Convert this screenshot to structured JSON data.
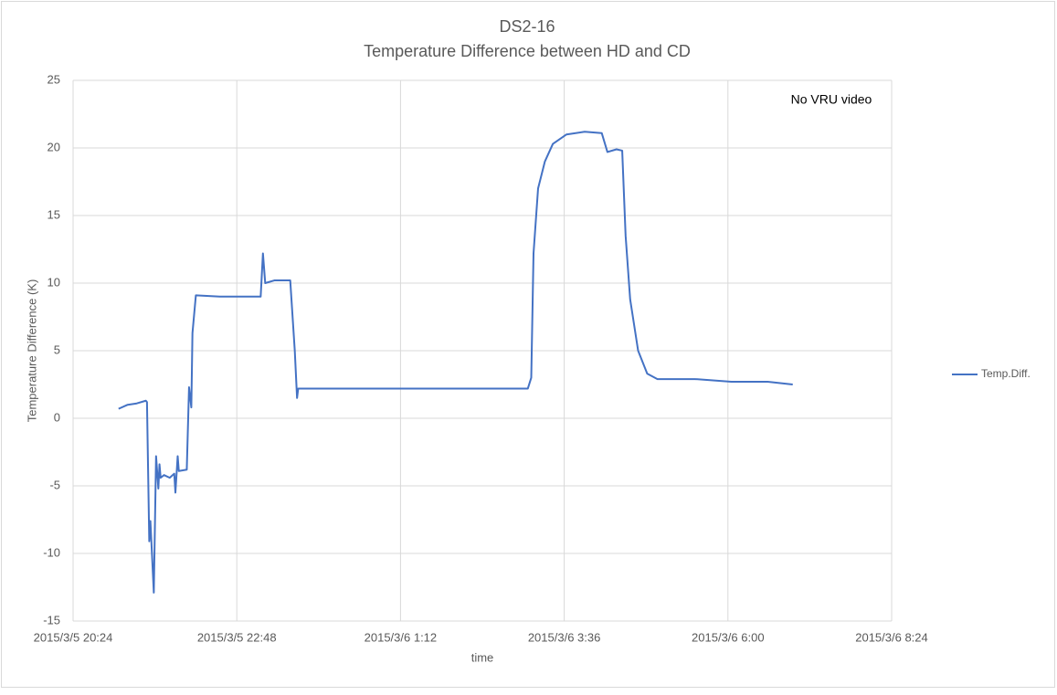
{
  "chart_data": {
    "type": "line",
    "title": "DS2-16",
    "subtitle": "Temperature Difference between HD and CD",
    "x_label": "time",
    "y_label": "Temperature Difference (K)",
    "annotation": "No VRU video",
    "x": [
      "2015/3/5 21:04",
      "2015/3/5 21:12",
      "2015/3/5 21:20",
      "2015/3/5 21:28",
      "2015/3/5 21:29",
      "2015/3/5 21:31",
      "2015/3/5 21:32",
      "2015/3/5 21:35",
      "2015/3/5 21:37",
      "2015/3/5 21:39",
      "2015/3/5 21:40",
      "2015/3/5 21:41",
      "2015/3/5 21:44",
      "2015/3/5 21:49",
      "2015/3/5 21:53",
      "2015/3/5 21:54",
      "2015/3/5 21:56",
      "2015/3/5 21:57",
      "2015/3/5 22:04",
      "2015/3/5 22:06",
      "2015/3/5 22:08",
      "2015/3/5 22:09",
      "2015/3/5 22:12",
      "2015/3/5 22:33",
      "2015/3/5 23:09",
      "2015/3/5 23:11",
      "2015/3/5 23:13",
      "2015/3/5 23:21",
      "2015/3/5 23:35",
      "2015/3/5 23:39",
      "2015/3/5 23:41",
      "2015/3/5 23:42",
      "2015/3/6 0:41",
      "2015/3/6 2:02",
      "2015/3/6 3:04",
      "2015/3/6 3:07",
      "2015/3/6 3:09",
      "2015/3/6 3:13",
      "2015/3/6 3:19",
      "2015/3/6 3:26",
      "2015/3/6 3:38",
      "2015/3/6 3:54",
      "2015/3/6 4:09",
      "2015/3/6 4:14",
      "2015/3/6 4:22",
      "2015/3/6 4:27",
      "2015/3/6 4:30",
      "2015/3/6 4:34",
      "2015/3/6 4:41",
      "2015/3/6 4:49",
      "2015/3/6 4:58",
      "2015/3/6 5:31",
      "2015/3/6 6:03",
      "2015/3/6 6:35",
      "2015/3/6 6:57"
    ],
    "series": [
      {
        "name": "Temp.Diff.",
        "color": "#4472c4",
        "values": [
          0.7,
          1.0,
          1.1,
          1.3,
          1.2,
          -9.1,
          -7.6,
          -12.9,
          -2.8,
          -5.2,
          -3.4,
          -4.4,
          -4.2,
          -4.4,
          -4.1,
          -5.5,
          -2.8,
          -3.9,
          -3.8,
          2.3,
          0.8,
          6.3,
          9.1,
          9.0,
          9.0,
          12.2,
          10.0,
          10.2,
          10.2,
          5.0,
          1.5,
          2.2,
          2.2,
          2.2,
          2.2,
          3.0,
          12.2,
          17.0,
          19.0,
          20.3,
          21.0,
          21.2,
          21.1,
          19.7,
          19.9,
          19.8,
          13.5,
          8.8,
          5.0,
          3.3,
          2.9,
          2.9,
          2.7,
          2.7,
          2.5
        ]
      }
    ],
    "xlim": [
      "2015/3/5 20:24",
      "2015/3/6 8:24"
    ],
    "xticks": [
      "2015/3/5 20:24",
      "2015/3/5 22:48",
      "2015/3/6 1:12",
      "2015/3/6 3:36",
      "2015/3/6 6:00",
      "2015/3/6 8:24"
    ],
    "ylim": [
      -15,
      25
    ],
    "yticks": [
      -15,
      -10,
      -5,
      0,
      5,
      10,
      15,
      20,
      25
    ],
    "grid": true,
    "legend": "right"
  }
}
